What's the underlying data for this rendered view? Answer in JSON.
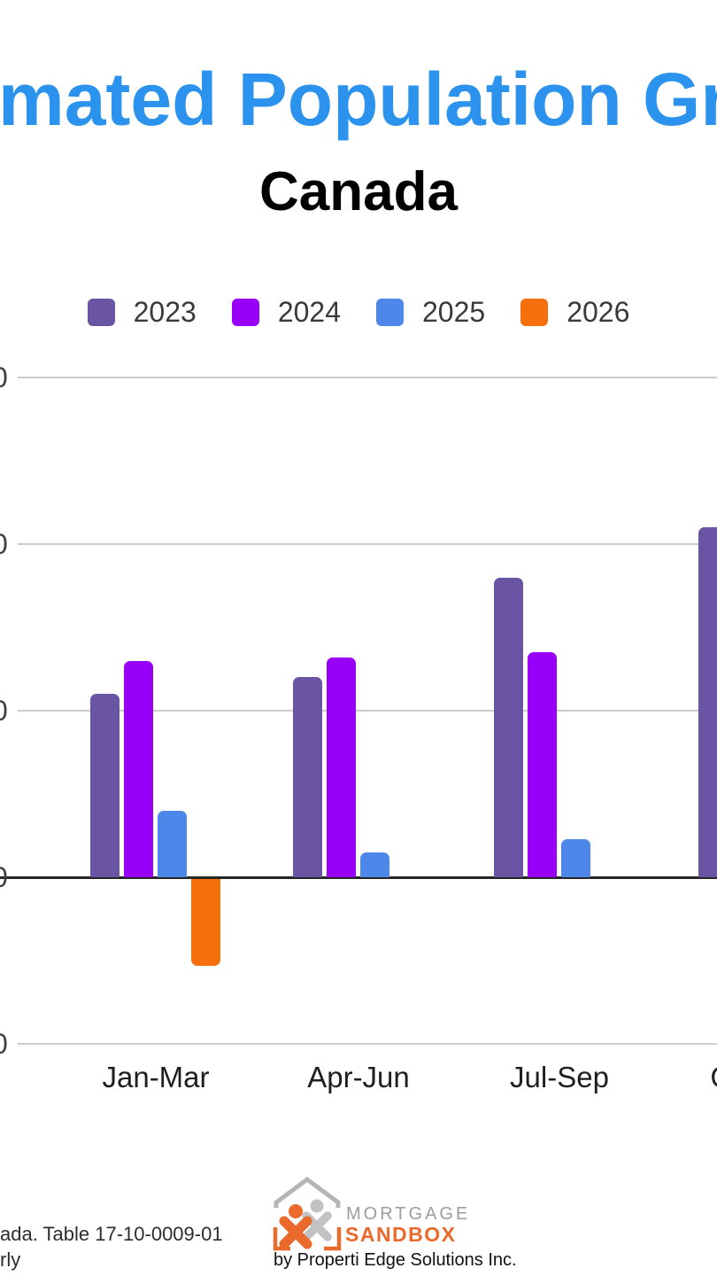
{
  "chart_data": {
    "type": "bar",
    "title": "mated Population Gro",
    "title_cropped": true,
    "title_color": "#2b93ee",
    "subtitle": "Canada",
    "categories": [
      "Jan-Mar",
      "Apr-Jun",
      "Jul-Sep",
      "Oct-Dec"
    ],
    "categories_cropped_note": "fourth category label clipped at right edge, only start of first letter visible",
    "series": [
      {
        "name": "2023",
        "color": "#6a55a4",
        "values": [
          110000,
          120000,
          180000,
          210000
        ]
      },
      {
        "name": "2024",
        "color": "#9900f7",
        "values": [
          130000,
          132000,
          135000,
          null
        ]
      },
      {
        "name": "2025",
        "color": "#4d87ea",
        "values": [
          40000,
          15000,
          23000,
          null
        ]
      },
      {
        "name": "2026",
        "color": "#f5700d",
        "values": [
          -52000,
          null,
          null,
          null
        ]
      }
    ],
    "xlabel": "",
    "ylabel": "",
    "ylim_estimated": [
      -100000,
      300000
    ],
    "y_gridline_values_estimated": [
      300000,
      200000,
      100000,
      0,
      -100000
    ],
    "y_axis_labels_cropped": true,
    "y_tick_visible_fragment": "0",
    "grid": true,
    "legend_position": "top",
    "gridline_color": "#cccccc",
    "zero_axis_color": "#262626"
  },
  "footer": {
    "source_line1": "ada. Table 17-10-0009-01",
    "source_line2": "rly",
    "logo": {
      "name_top": "MORTGAGE",
      "name_bottom": "SANDBOX",
      "byline": "by Properti Edge Solutions Inc.",
      "orange": "#ea6a2b",
      "gray": "#b5b5b5"
    }
  }
}
